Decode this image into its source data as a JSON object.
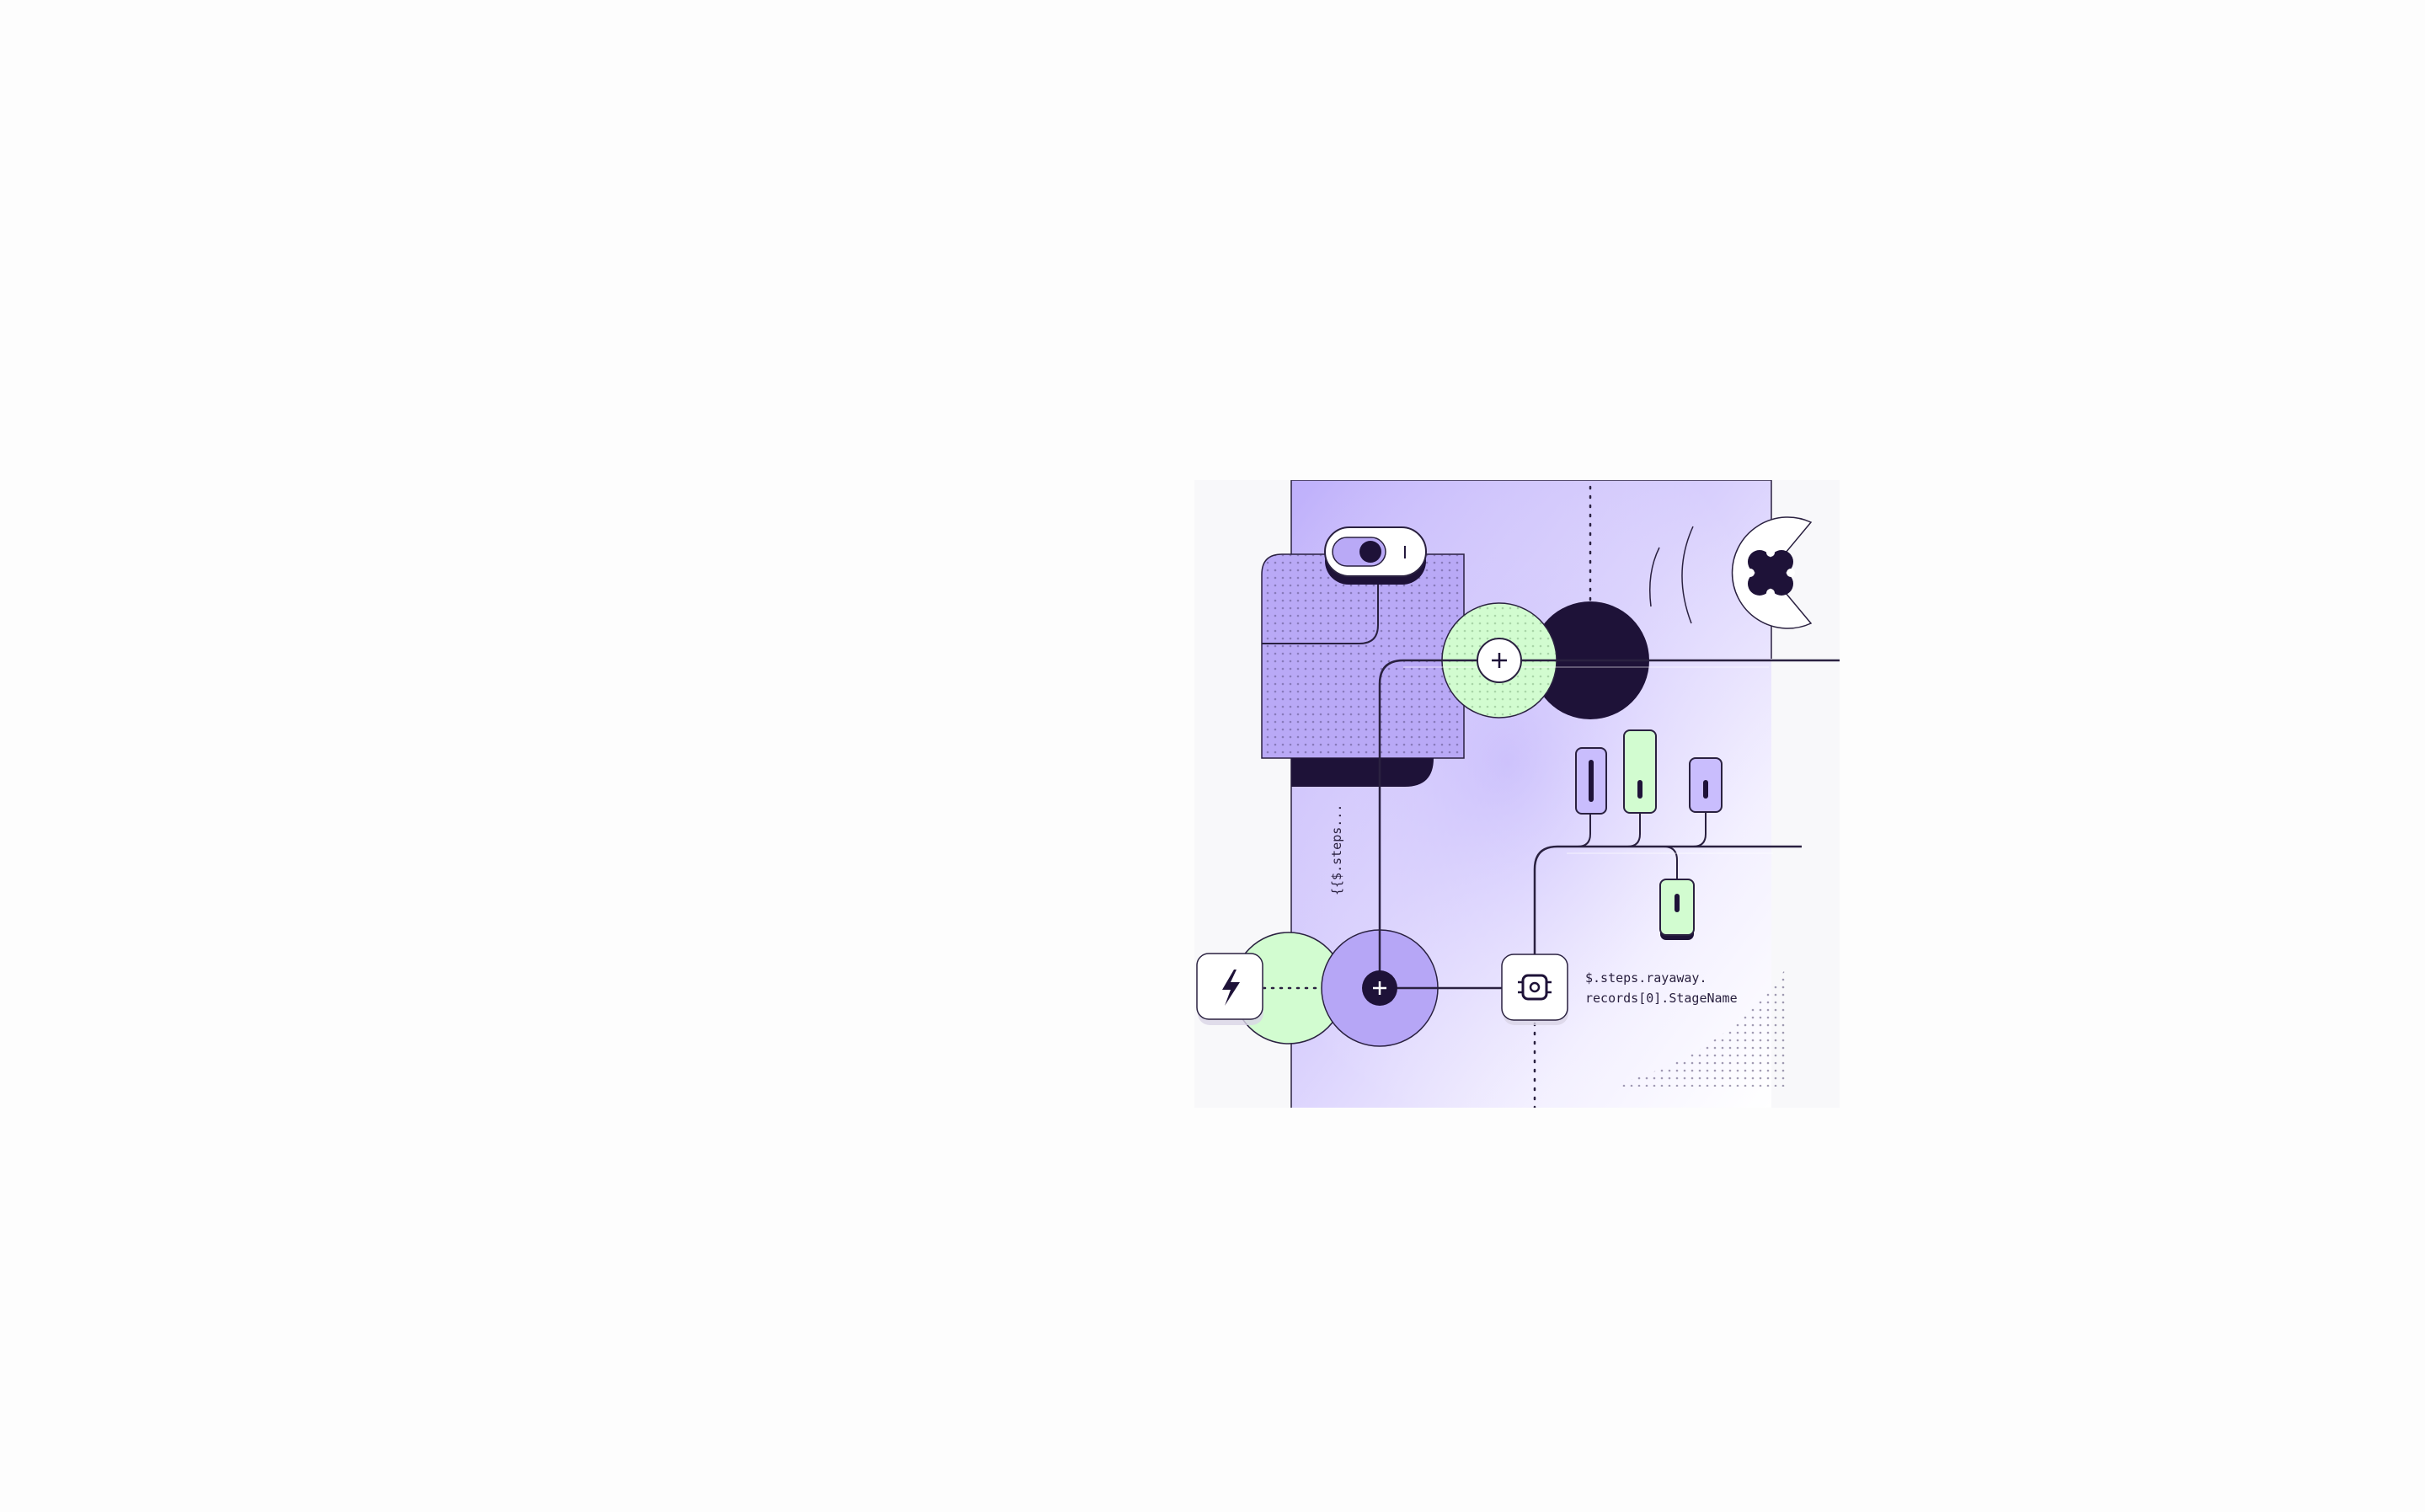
{
  "texts": {
    "vertical_expression": "{{$.steps...",
    "expression_line1": "$.steps.rayaway.",
    "expression_line2": "records[0].StageName",
    "toggle_on_mark": "I"
  },
  "colors": {
    "navy": "#1e1238",
    "lavender": "#c9bdfd",
    "lavender_light": "#ddd6ff",
    "mint": "#d2fcd0",
    "white": "#ffffff",
    "line": "#2a2140"
  },
  "icons": {
    "trigger": "lightning-bolt-icon",
    "plus_top": "plus-icon",
    "plus_bottom": "plus-icon",
    "processor": "chip-icon",
    "brand": "four-petal-logo-icon"
  }
}
